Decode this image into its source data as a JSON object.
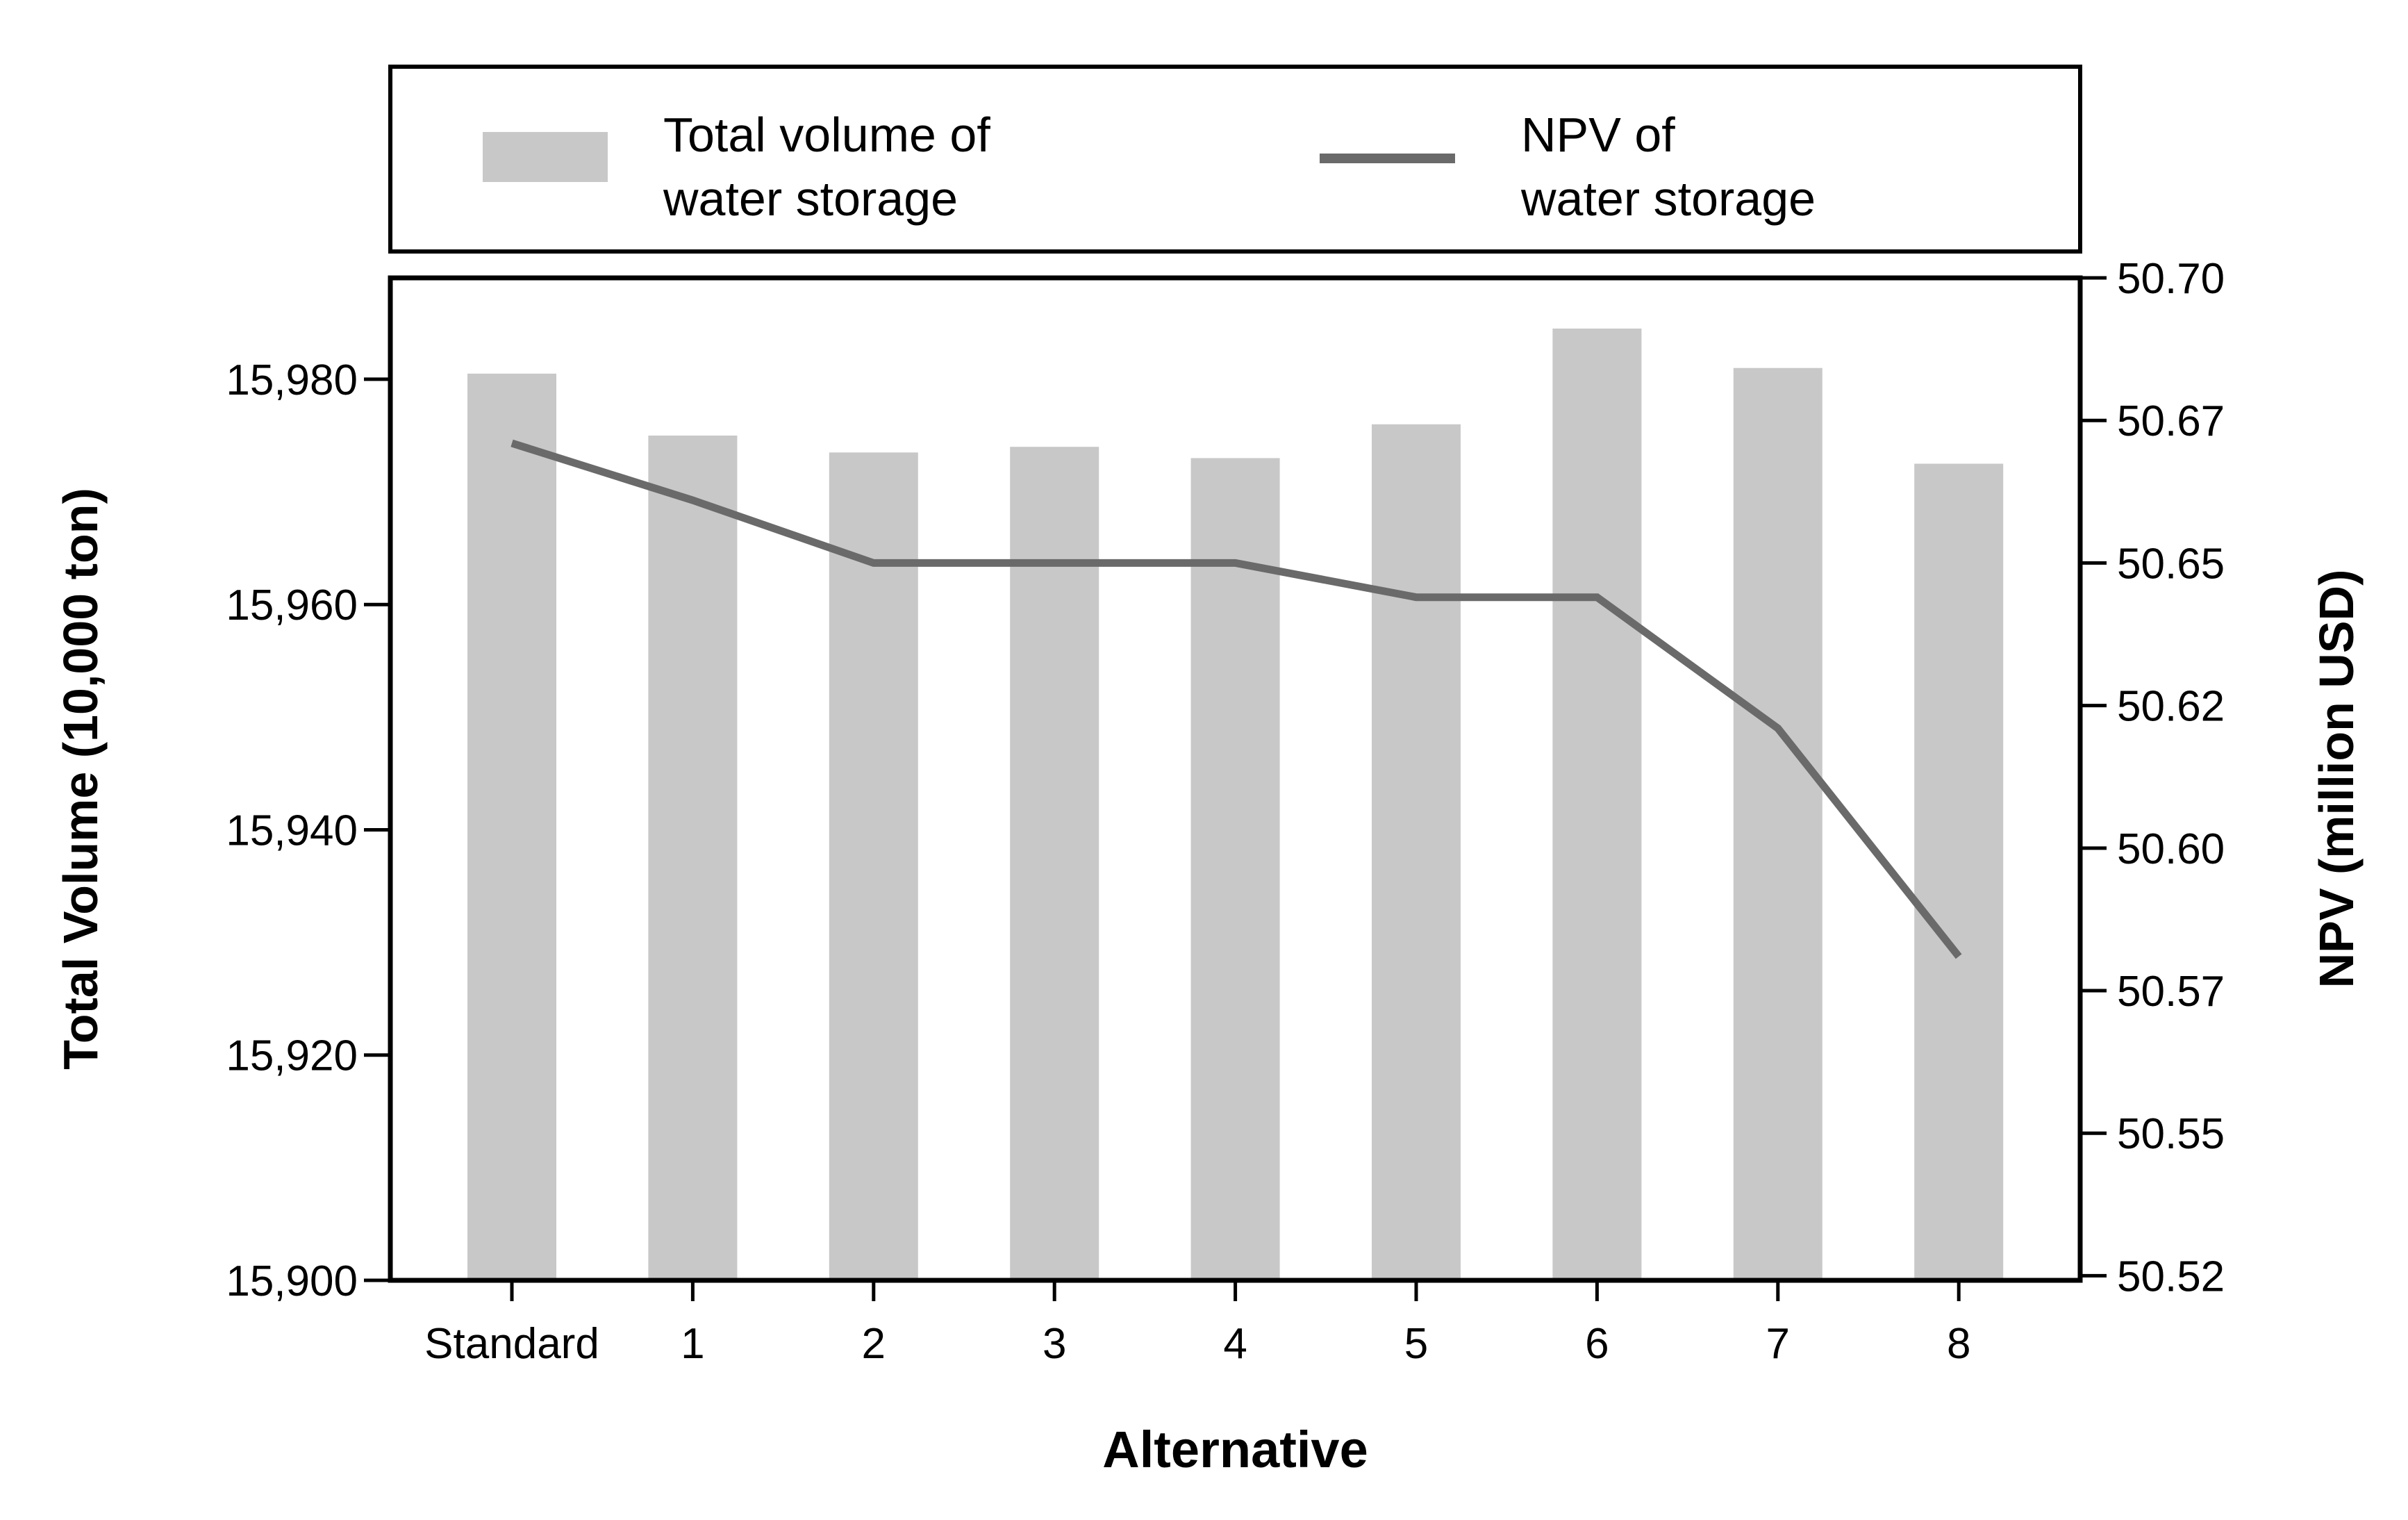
{
  "chart_data": {
    "type": "bar",
    "categories": [
      "Standard",
      "1",
      "2",
      "3",
      "4",
      "5",
      "6",
      "7",
      "8"
    ],
    "series": [
      {
        "name": "Total volume of water storage",
        "kind": "bar",
        "axis": "left",
        "values": [
          15980.5,
          15975.0,
          15973.5,
          15974.0,
          15973.0,
          15976.0,
          15984.5,
          15981.0,
          15972.5
        ]
      },
      {
        "name": "NPV of water storage",
        "kind": "line",
        "axis": "right",
        "values": [
          50.671,
          50.661,
          50.65,
          50.65,
          50.65,
          50.644,
          50.644,
          50.621,
          50.581
        ]
      }
    ],
    "xlabel": "Alternative",
    "left_axis": {
      "label": "Total Volume (10,000 ton)",
      "range": [
        15900,
        15989
      ],
      "ticks": [
        15900,
        15920,
        15940,
        15960,
        15980
      ],
      "tick_labels": [
        "15,900",
        "15,920",
        "15,940",
        "15,960",
        "15,980"
      ]
    },
    "right_axis": {
      "label": "NPV (million USD)",
      "range": [
        50.5242,
        50.7
      ],
      "ticks": [
        50.525,
        50.55,
        50.575,
        50.6,
        50.625,
        50.65,
        50.675,
        50.7
      ],
      "tick_labels": [
        "50.52",
        "50.55",
        "50.57",
        "50.60",
        "50.62",
        "50.65",
        "50.67",
        "50.70"
      ]
    },
    "legend": {
      "position": "top",
      "entries": [
        {
          "swatch": "bar",
          "label_line1": "Total volume of",
          "label_line2": "water storage"
        },
        {
          "swatch": "line",
          "label_line1": "NPV of",
          "label_line2": "water storage"
        }
      ]
    },
    "grid": false
  },
  "colors": {
    "bar": "#c8c8c8",
    "line": "#6a6a6a",
    "axis": "#000000",
    "text": "#000000",
    "background": "#ffffff"
  }
}
